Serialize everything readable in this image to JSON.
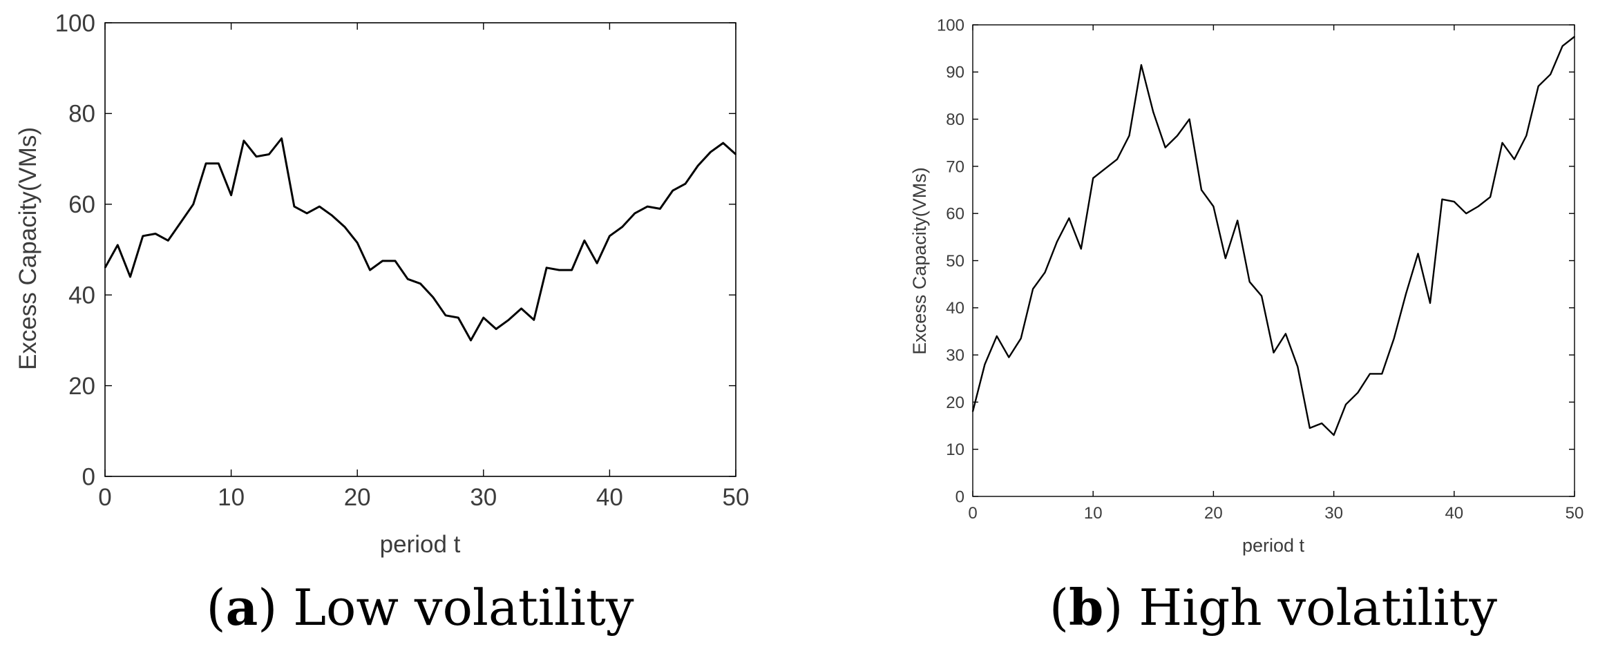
{
  "chart_data": [
    {
      "type": "line",
      "panel": "a",
      "caption_letter": "a",
      "caption_text": " Low volatility",
      "xlabel": "period t",
      "ylabel": "Excess Capacity(VMs)",
      "xlim": [
        0,
        50
      ],
      "ylim": [
        0,
        100
      ],
      "xticks": [
        0,
        10,
        20,
        30,
        40,
        50
      ],
      "yticks": [
        0,
        20,
        40,
        60,
        80,
        100
      ],
      "x": [
        0,
        1,
        2,
        3,
        4,
        5,
        6,
        7,
        8,
        9,
        10,
        11,
        12,
        13,
        14,
        15,
        16,
        17,
        18,
        19,
        20,
        21,
        22,
        23,
        24,
        25,
        26,
        27,
        28,
        29,
        30,
        31,
        32,
        33,
        34,
        35,
        36,
        37,
        38,
        39,
        40,
        41,
        42,
        43,
        44,
        45,
        46,
        47,
        48,
        49,
        50
      ],
      "y": [
        46,
        51,
        44,
        53,
        53.5,
        52,
        56,
        60,
        69,
        69,
        62,
        74,
        70.5,
        71,
        74.5,
        59.5,
        58,
        59.5,
        57.5,
        55,
        51.5,
        45.5,
        47.5,
        47.5,
        43.5,
        42.5,
        39.5,
        35.5,
        35,
        30,
        35,
        32.5,
        34.5,
        37,
        34.5,
        46,
        45.5,
        45.5,
        52,
        47,
        53,
        55,
        58,
        59.5,
        59,
        63,
        64.5,
        68.5,
        71.5,
        73.5,
        71
      ],
      "grid": false,
      "legend": "none"
    },
    {
      "type": "line",
      "panel": "b",
      "caption_letter": "b",
      "caption_text": " High volatility",
      "xlabel": "period t",
      "ylabel": "Excess Capacity(VMs)",
      "xlim": [
        0,
        50
      ],
      "ylim": [
        0,
        100
      ],
      "xticks": [
        0,
        10,
        20,
        30,
        40,
        50
      ],
      "yticks": [
        0,
        10,
        20,
        30,
        40,
        50,
        60,
        70,
        80,
        90,
        100
      ],
      "x": [
        0,
        1,
        2,
        3,
        4,
        5,
        6,
        7,
        8,
        9,
        10,
        11,
        12,
        13,
        14,
        15,
        16,
        17,
        18,
        19,
        20,
        21,
        22,
        23,
        24,
        25,
        26,
        27,
        28,
        29,
        30,
        31,
        32,
        33,
        34,
        35,
        36,
        37,
        38,
        39,
        40,
        41,
        42,
        43,
        44,
        45,
        46,
        47,
        48,
        49,
        50
      ],
      "y": [
        18,
        28,
        34,
        29.5,
        33.5,
        44,
        47.5,
        54,
        59,
        52.5,
        67.5,
        69.5,
        71.5,
        76.5,
        91.5,
        81.5,
        74,
        76.5,
        80,
        65,
        61.5,
        50.5,
        58.5,
        45.5,
        42.5,
        30.5,
        34.5,
        27.5,
        14.5,
        15.5,
        13,
        19.5,
        22,
        26,
        26,
        33.5,
        43,
        51.5,
        41,
        63,
        62.5,
        60,
        61.5,
        63.5,
        75,
        71.5,
        76.5,
        87,
        89.5,
        95.5,
        97.5
      ],
      "grid": false,
      "legend": "none"
    }
  ]
}
